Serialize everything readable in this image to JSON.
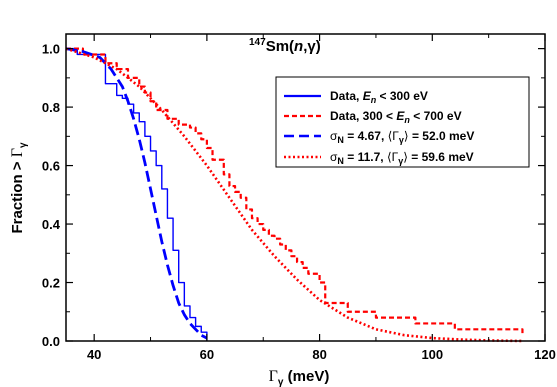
{
  "chart_data": {
    "type": "line",
    "title": {
      "sup": "147",
      "element": "Sm",
      "reaction_open": "(",
      "reaction_n": "n",
      "reaction_sep": ",",
      "reaction_gamma": "γ",
      "reaction_close": ")"
    },
    "xlabel": {
      "symbol": "Γ",
      "sub": "γ",
      "unit": " (meV)"
    },
    "ylabel": {
      "text": "Fraction > ",
      "symbol": "Γ",
      "sub": "γ"
    },
    "xlim": [
      35,
      120
    ],
    "ylim": [
      0.0,
      1.05
    ],
    "xticks": [
      40,
      60,
      80,
      100,
      120
    ],
    "xtick_labels": [
      "40",
      "60",
      "80",
      "100",
      "120"
    ],
    "yticks": [
      0.0,
      0.2,
      0.4,
      0.6,
      0.8,
      1.0
    ],
    "ytick_labels": [
      "0.0",
      "0.2",
      "0.4",
      "0.6",
      "0.8",
      "1.0"
    ],
    "grid": false,
    "legend_position": "center-right",
    "legend": [
      {
        "prefix": "Data, ",
        "var": "E",
        "varsub": "n",
        "suffix": " < 300 eV"
      },
      {
        "prefix": "Data, 300 < ",
        "var": "E",
        "varsub": "n",
        "suffix": " < 700 eV"
      },
      {
        "sigma": "σ",
        "sigma_sub": "N",
        "eq1": " = 4.67, ",
        "lang": "⟨",
        "G": "Γ",
        "Gsub": "γ",
        "rang": "⟩",
        "eq2": " = 52.0 meV"
      },
      {
        "sigma": "σ",
        "sigma_sub": "N",
        "eq1": " = 11.7, ",
        "lang": "⟨",
        "G": "Γ",
        "Gsub": "γ",
        "rang": "⟩",
        "eq2": " = 59.6 meV"
      }
    ],
    "series": [
      {
        "style": "step-solid",
        "color": "#0000ff",
        "x": [
          35,
          37,
          42,
          44,
          45,
          46,
          47,
          48,
          49,
          50,
          51,
          52,
          53,
          54,
          55,
          56,
          57,
          58,
          59,
          60
        ],
        "y": [
          1.0,
          0.98,
          0.88,
          0.84,
          0.83,
          0.81,
          0.78,
          0.75,
          0.7,
          0.65,
          0.6,
          0.52,
          0.42,
          0.31,
          0.2,
          0.12,
          0.08,
          0.05,
          0.03,
          0.0
        ]
      },
      {
        "style": "step-dashed",
        "color": "#ff0000",
        "x": [
          35,
          38,
          42,
          44,
          46,
          48,
          49,
          50,
          51,
          53,
          55,
          57,
          58,
          59,
          60,
          61,
          63,
          64,
          65,
          66,
          67,
          68,
          69,
          70,
          71,
          72,
          73,
          74,
          75,
          76,
          77,
          78,
          80,
          81,
          85,
          90,
          97,
          104,
          116
        ],
        "y": [
          1.0,
          0.98,
          0.95,
          0.93,
          0.9,
          0.87,
          0.85,
          0.82,
          0.79,
          0.76,
          0.74,
          0.73,
          0.71,
          0.69,
          0.66,
          0.62,
          0.57,
          0.53,
          0.51,
          0.49,
          0.45,
          0.42,
          0.4,
          0.38,
          0.36,
          0.35,
          0.33,
          0.31,
          0.29,
          0.27,
          0.25,
          0.23,
          0.2,
          0.13,
          0.1,
          0.08,
          0.06,
          0.04,
          0.02
        ]
      },
      {
        "style": "dashed",
        "color": "#0000ff",
        "x": [
          35,
          38,
          41,
          43,
          45,
          46,
          47,
          48,
          49,
          50,
          51,
          52,
          53,
          54,
          55,
          56,
          57,
          58,
          59,
          60
        ],
        "y": [
          1.0,
          0.99,
          0.97,
          0.93,
          0.87,
          0.82,
          0.76,
          0.69,
          0.61,
          0.52,
          0.43,
          0.34,
          0.26,
          0.19,
          0.13,
          0.09,
          0.06,
          0.04,
          0.02,
          0.01
        ]
      },
      {
        "style": "dotted",
        "color": "#ff0000",
        "x": [
          35,
          40,
          44,
          48,
          52,
          56,
          60,
          64,
          68,
          72,
          76,
          80,
          85,
          90,
          95,
          100,
          105,
          110,
          116
        ],
        "y": [
          1.0,
          0.97,
          0.93,
          0.87,
          0.79,
          0.7,
          0.6,
          0.49,
          0.38,
          0.29,
          0.21,
          0.14,
          0.08,
          0.04,
          0.02,
          0.01,
          0.005,
          0.002,
          0.0
        ]
      }
    ]
  }
}
